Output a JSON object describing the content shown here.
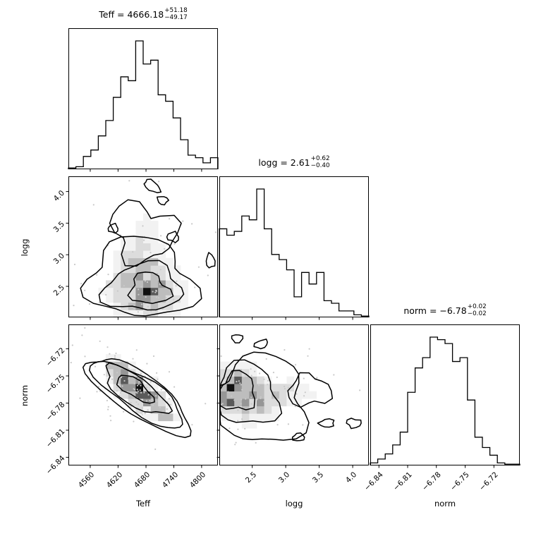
{
  "chart_data": {
    "type": "corner_plot",
    "figure_bg": "#ffffff",
    "line_color": "#000000",
    "scatter_color": "#c9c9c9",
    "grey_levels": [
      "#f2f2f2",
      "#dcdcdc",
      "#bdbdbd",
      "#969696",
      "#5a5a5a",
      "#111111"
    ],
    "grey_thresholds": [
      0.1,
      0.22,
      0.38,
      0.58,
      0.78,
      0.95
    ],
    "axes": {
      "teff": {
        "label": "Teff",
        "ticks": [
          "4560",
          "4620",
          "4680",
          "4740",
          "4800"
        ],
        "fracs": [
          0.146,
          0.332,
          0.519,
          0.705,
          0.891
        ],
        "lim": [
          4513,
          4835
        ]
      },
      "logg": {
        "label": "logg",
        "ticks": [
          "2.5",
          "3.0",
          "3.5",
          "4.0"
        ],
        "fracs": [
          0.22,
          0.444,
          0.668,
          0.892
        ],
        "lim": [
          2.01,
          4.24
        ]
      },
      "norm": {
        "label": "norm",
        "ticks": [
          "−6.84",
          "−6.81",
          "−6.78",
          "−6.75",
          "−6.72"
        ],
        "fracs": [
          0.058,
          0.25,
          0.442,
          0.635,
          0.827
        ],
        "lim": [
          -6.849,
          -6.693
        ]
      }
    },
    "panels": {
      "teff_hist": {
        "type": "histogram",
        "xaxis": "teff",
        "title": {
          "main": "Teff = 4666.18",
          "plus": "+51.18",
          "minus": "−49.17"
        },
        "values": [
          0.01,
          0.02,
          0.1,
          0.15,
          0.26,
          0.38,
          0.56,
          0.72,
          0.69,
          1.0,
          0.82,
          0.85,
          0.58,
          0.53,
          0.4,
          0.23,
          0.11,
          0.09,
          0.05,
          0.09
        ]
      },
      "logg_hist": {
        "type": "histogram",
        "xaxis": "logg",
        "title": {
          "main": "logg = 2.61",
          "plus": "+0.62",
          "minus": "−0.40"
        },
        "values": [
          0.69,
          0.64,
          0.67,
          0.79,
          0.76,
          1.0,
          0.69,
          0.49,
          0.45,
          0.37,
          0.16,
          0.35,
          0.26,
          0.35,
          0.13,
          0.11,
          0.05,
          0.05,
          0.02,
          0.01
        ]
      },
      "norm_hist": {
        "type": "histogram",
        "xaxis": "norm",
        "title": {
          "main": "norm = −6.78",
          "plus": "+0.02",
          "minus": "−0.02"
        },
        "values": [
          0.02,
          0.05,
          0.09,
          0.16,
          0.26,
          0.57,
          0.76,
          0.84,
          1.0,
          0.98,
          0.95,
          0.81,
          0.84,
          0.51,
          0.22,
          0.14,
          0.08,
          0.02,
          0.01,
          0.01
        ]
      },
      "teff_logg": {
        "type": "contour2d",
        "xaxis": "teff",
        "yaxis": "logg",
        "blobs": [
          [
            0.52,
            0.16,
            0.15,
            0.1,
            1.0
          ],
          [
            0.5,
            0.32,
            0.12,
            0.09,
            0.55
          ],
          [
            0.46,
            0.47,
            0.1,
            0.08,
            0.35
          ],
          [
            0.53,
            0.63,
            0.08,
            0.08,
            0.22
          ],
          [
            0.56,
            0.18,
            0.02,
            0.02,
            0.5
          ],
          [
            0.47,
            0.1,
            0.02,
            0.02,
            0.45
          ]
        ],
        "rings": [
          {
            "cx": 0.48,
            "cy": 0.27,
            "rx": 0.36,
            "ry": 0.27,
            "rot": 0,
            "jit": 0.3,
            "n": 30,
            "seed": 11
          },
          {
            "cx": 0.5,
            "cy": 0.6,
            "rx": 0.21,
            "ry": 0.2,
            "rot": 15,
            "jit": 0.45,
            "n": 22,
            "seed": 12
          },
          {
            "cx": 0.5,
            "cy": 0.21,
            "rx": 0.25,
            "ry": 0.17,
            "rot": 0,
            "jit": 0.28,
            "n": 26,
            "seed": 13
          },
          {
            "cx": 0.54,
            "cy": 0.2,
            "rx": 0.13,
            "ry": 0.11,
            "rot": 0,
            "jit": 0.35,
            "n": 18,
            "seed": 14
          },
          {
            "cx": 0.56,
            "cy": 0.93,
            "rx": 0.06,
            "ry": 0.035,
            "rot": -35,
            "jit": 0.25,
            "n": 12,
            "seed": 15
          },
          {
            "cx": 0.3,
            "cy": 0.63,
            "rx": 0.035,
            "ry": 0.03,
            "rot": 0,
            "jit": 0.3,
            "n": 10,
            "seed": 16
          },
          {
            "cx": 0.7,
            "cy": 0.57,
            "rx": 0.04,
            "ry": 0.035,
            "rot": 0,
            "jit": 0.3,
            "n": 10,
            "seed": 17
          },
          {
            "cx": 0.95,
            "cy": 0.4,
            "rx": 0.03,
            "ry": 0.05,
            "rot": 0,
            "jit": 0.3,
            "n": 10,
            "seed": 18
          },
          {
            "cx": 0.63,
            "cy": 0.83,
            "rx": 0.035,
            "ry": 0.03,
            "rot": 0,
            "jit": 0.3,
            "n": 10,
            "seed": 19
          }
        ],
        "seed": 101,
        "scatter_n": 80,
        "scatter_spread": 2.4
      },
      "teff_norm": {
        "type": "contour2d",
        "xaxis": "teff",
        "yaxis": "norm",
        "blobs": [
          [
            0.3,
            0.7,
            0.06,
            0.05,
            0.5
          ],
          [
            0.38,
            0.62,
            0.065,
            0.055,
            0.8
          ],
          [
            0.46,
            0.54,
            0.07,
            0.055,
            1.0
          ],
          [
            0.55,
            0.45,
            0.07,
            0.055,
            0.75
          ],
          [
            0.64,
            0.35,
            0.065,
            0.05,
            0.45
          ],
          [
            0.46,
            0.55,
            0.018,
            0.028,
            0.8
          ],
          [
            0.15,
            0.86,
            0.05,
            0.04,
            0.1
          ],
          [
            0.83,
            0.17,
            0.05,
            0.04,
            0.1
          ]
        ],
        "rings": [
          {
            "cx": 0.47,
            "cy": 0.5,
            "rx": 0.4,
            "ry": 0.15,
            "rot": -36,
            "jit": 0.15,
            "n": 34,
            "seed": 21
          },
          {
            "cx": 0.47,
            "cy": 0.505,
            "rx": 0.355,
            "ry": 0.125,
            "rot": -36,
            "jit": 0.16,
            "n": 30,
            "seed": 22
          },
          {
            "cx": 0.45,
            "cy": 0.53,
            "rx": 0.26,
            "ry": 0.095,
            "rot": -36,
            "jit": 0.2,
            "n": 24,
            "seed": 23
          },
          {
            "cx": 0.445,
            "cy": 0.545,
            "rx": 0.14,
            "ry": 0.06,
            "rot": -36,
            "jit": 0.25,
            "n": 16,
            "seed": 24
          }
        ],
        "seed": 102,
        "scatter_n": 120,
        "scatter_spread": 2.0
      },
      "logg_norm": {
        "type": "contour2d",
        "xaxis": "logg",
        "yaxis": "norm",
        "blobs": [
          [
            0.02,
            0.5,
            0.09,
            0.11,
            1.0
          ],
          [
            0.15,
            0.56,
            0.09,
            0.09,
            0.85
          ],
          [
            0.25,
            0.44,
            0.09,
            0.09,
            0.6
          ],
          [
            0.38,
            0.52,
            0.09,
            0.08,
            0.38
          ],
          [
            0.57,
            0.5,
            0.08,
            0.07,
            0.25
          ],
          [
            0.03,
            0.52,
            0.02,
            0.02,
            0.5
          ],
          [
            0.16,
            0.62,
            0.02,
            0.02,
            0.45
          ],
          [
            0.16,
            0.38,
            0.02,
            0.02,
            0.4
          ],
          [
            0.27,
            0.52,
            0.02,
            0.02,
            0.4
          ]
        ],
        "rings": [
          {
            "cx": 0.26,
            "cy": 0.46,
            "rx": 0.34,
            "ry": 0.29,
            "rot": 5,
            "jit": 0.3,
            "n": 32,
            "seed": 31
          },
          {
            "cx": 0.6,
            "cy": 0.53,
            "rx": 0.135,
            "ry": 0.115,
            "rot": 0,
            "jit": 0.35,
            "n": 16,
            "seed": 32
          },
          {
            "cx": 0.17,
            "cy": 0.5,
            "rx": 0.23,
            "ry": 0.21,
            "rot": 0,
            "jit": 0.28,
            "n": 24,
            "seed": 33
          },
          {
            "cx": 0.11,
            "cy": 0.52,
            "rx": 0.13,
            "ry": 0.14,
            "rot": 0,
            "jit": 0.33,
            "n": 18,
            "seed": 34
          },
          {
            "cx": 0.12,
            "cy": 0.9,
            "rx": 0.04,
            "ry": 0.028,
            "rot": 0,
            "jit": 0.3,
            "n": 10,
            "seed": 35
          },
          {
            "cx": 0.28,
            "cy": 0.86,
            "rx": 0.045,
            "ry": 0.03,
            "rot": 20,
            "jit": 0.3,
            "n": 10,
            "seed": 36
          },
          {
            "cx": 0.53,
            "cy": 0.2,
            "rx": 0.04,
            "ry": 0.028,
            "rot": 0,
            "jit": 0.3,
            "n": 10,
            "seed": 37
          },
          {
            "cx": 0.72,
            "cy": 0.3,
            "rx": 0.05,
            "ry": 0.03,
            "rot": 0,
            "jit": 0.3,
            "n": 10,
            "seed": 38
          },
          {
            "cx": 0.9,
            "cy": 0.3,
            "rx": 0.05,
            "ry": 0.033,
            "rot": 0,
            "jit": 0.3,
            "n": 10,
            "seed": 39
          }
        ],
        "seed": 103,
        "scatter_n": 90,
        "scatter_spread": 2.4
      }
    }
  }
}
